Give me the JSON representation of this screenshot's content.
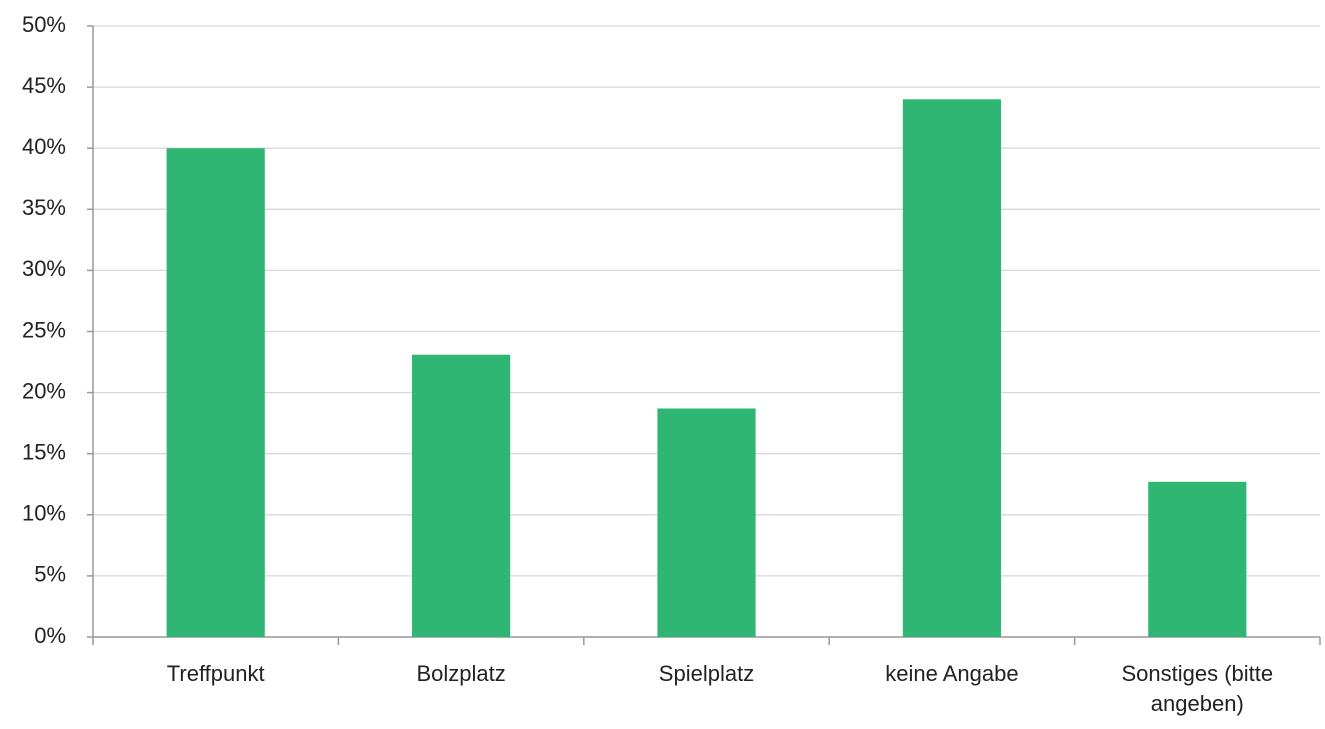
{
  "chart_data": {
    "type": "bar",
    "categories": [
      "Treffpunkt",
      "Bolzplatz",
      "Spielplatz",
      "keine Angabe",
      "Sonstiges (bitte angeben)"
    ],
    "values": [
      40,
      23.1,
      18.7,
      44,
      12.7
    ],
    "color": "#2eb672",
    "ylim": [
      0,
      50
    ],
    "yticks": [
      {
        "value": 0,
        "label": "0%"
      },
      {
        "value": 5,
        "label": "5%"
      },
      {
        "value": 10,
        "label": "10%"
      },
      {
        "value": 15,
        "label": "15%"
      },
      {
        "value": 20,
        "label": "20%"
      },
      {
        "value": 25,
        "label": "25%"
      },
      {
        "value": 30,
        "label": "30%"
      },
      {
        "value": 35,
        "label": "35%"
      },
      {
        "value": 40,
        "label": "40%"
      },
      {
        "value": 45,
        "label": "45%"
      },
      {
        "value": 50,
        "label": "50%"
      }
    ],
    "grid": true
  }
}
